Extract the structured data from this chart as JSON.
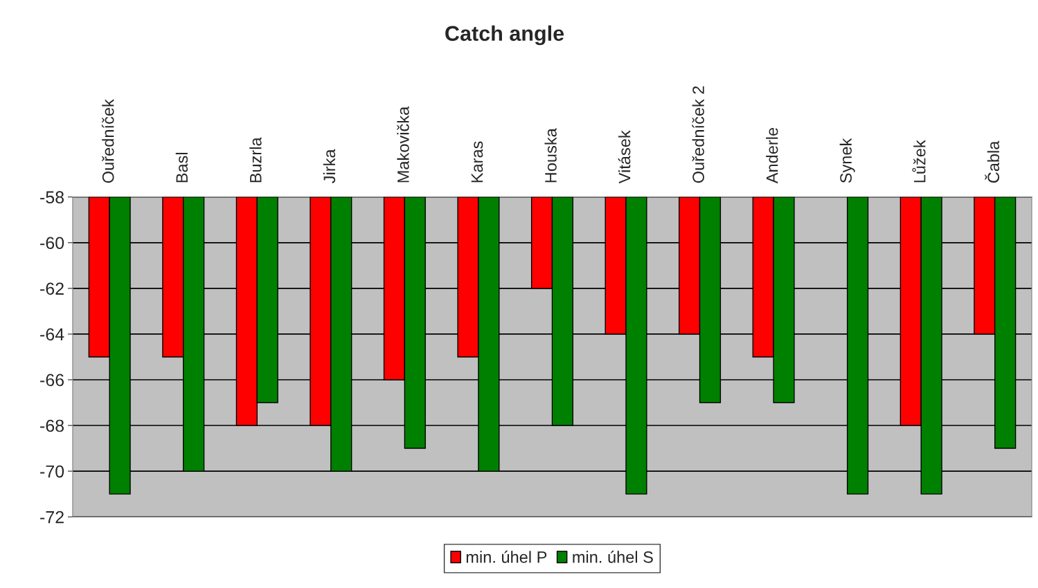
{
  "chart_data": {
    "type": "bar",
    "title": "Catch angle",
    "categories": [
      "Ouředníček",
      "Basl",
      "Buzrla",
      "Jirka",
      "Makovička",
      "Karas",
      "Houska",
      "Vitásek",
      "Ouředníček 2",
      "Anderle",
      "Synek",
      "Lůžek",
      "Čabla"
    ],
    "series": [
      {
        "name": "min. úhel P",
        "color": "#ff0000",
        "values": [
          -65,
          -65,
          -68,
          -68,
          -66,
          -65,
          -62,
          -64,
          -64,
          -65,
          null,
          -68,
          -64
        ]
      },
      {
        "name": "min. úhel S",
        "color": "#008000",
        "values": [
          -71,
          -70,
          -67,
          -70,
          -69,
          -70,
          -68,
          -71,
          -67,
          -67,
          -71,
          -71,
          -69
        ]
      }
    ],
    "ylim": [
      -72,
      -58
    ],
    "yticks": [
      -72,
      -70,
      -68,
      -66,
      -64,
      -62,
      -60,
      -58
    ],
    "grid": "y",
    "legend": "bottom"
  }
}
